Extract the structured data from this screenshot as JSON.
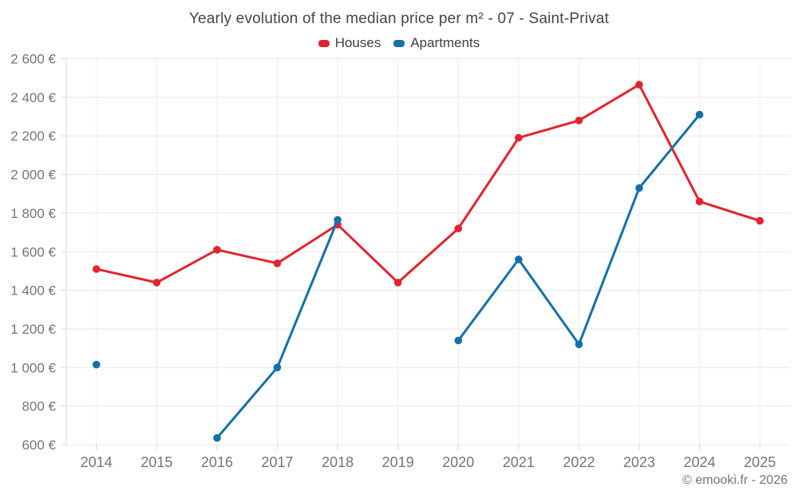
{
  "chart_data": {
    "type": "line",
    "title": "Yearly evolution of the median price per m² - 07 - Saint-Privat",
    "x": [
      "2014",
      "2015",
      "2016",
      "2017",
      "2018",
      "2019",
      "2020",
      "2021",
      "2022",
      "2023",
      "2024",
      "2025"
    ],
    "series": [
      {
        "name": "Houses",
        "color": "#e02530",
        "values": [
          1510,
          1440,
          1610,
          1540,
          1740,
          1440,
          1720,
          2190,
          2280,
          2465,
          1860,
          1760
        ]
      },
      {
        "name": "Apartments",
        "color": "#1470a6",
        "values": [
          1015,
          null,
          635,
          1000,
          1765,
          null,
          1140,
          1560,
          1120,
          1930,
          2310,
          null
        ]
      }
    ],
    "ylim": [
      600,
      2600
    ],
    "ytick_step": 200,
    "ytick_labels": [
      "600 €",
      "800 €",
      "1 000 €",
      "1 200 €",
      "1 400 €",
      "1 600 €",
      "1 800 €",
      "2 000 €",
      "2 200 €",
      "2 400 €",
      "2 600 €"
    ],
    "xlabel": "",
    "ylabel": "",
    "grid": true,
    "legend_position": "top"
  },
  "footer": "© emooki.fr - 2026"
}
